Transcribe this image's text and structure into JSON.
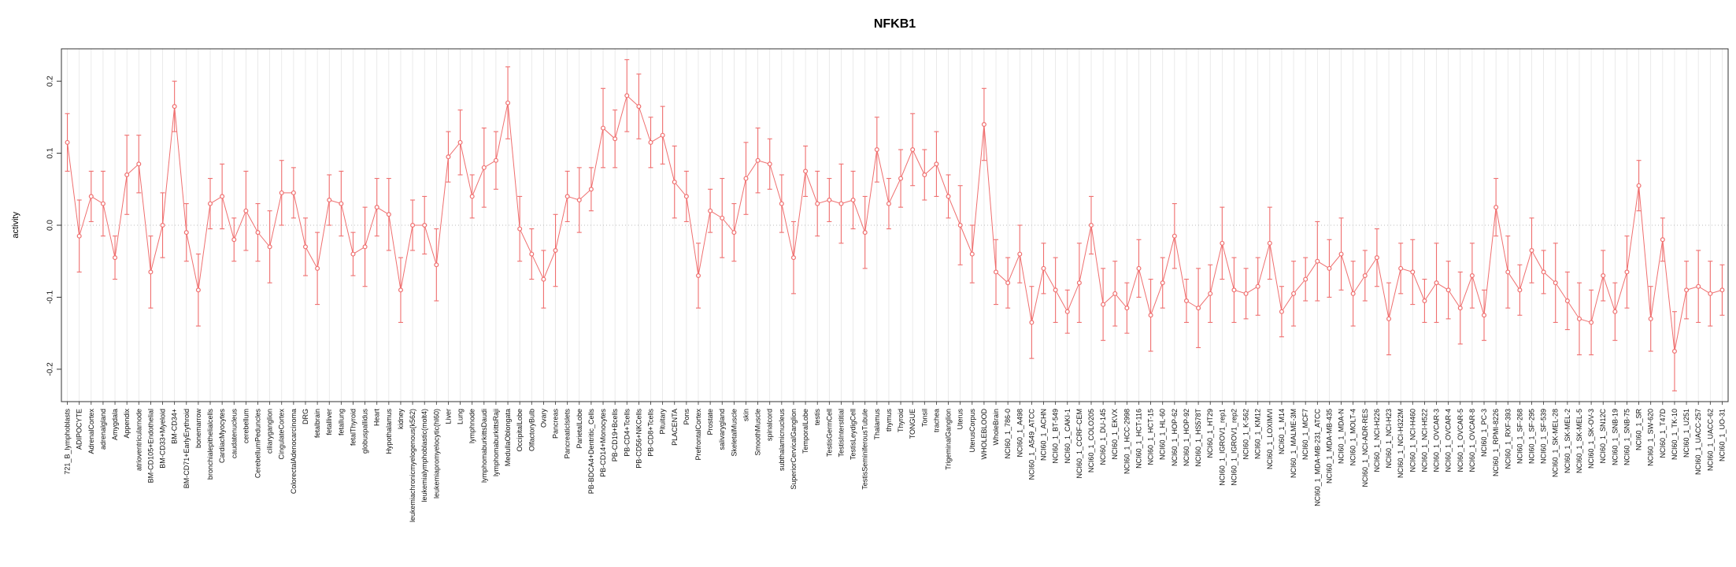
{
  "page": {
    "background": "#ffffff"
  },
  "colors": {
    "series": "#ef6f6f",
    "grid": "#e2e2e2",
    "axis": "#333333",
    "zero_line": "#bbbbbb",
    "label_text": "#111111"
  },
  "chart_data": {
    "type": "line",
    "title": "NFKB1",
    "xlabel": "",
    "ylabel": "activity",
    "ylim": [
      -0.245,
      0.245
    ],
    "yticks": [
      -0.2,
      -0.1,
      0.0,
      0.1,
      0.2
    ],
    "grid": {
      "vertical_per_category": true,
      "zero_line_dotted": true
    },
    "legend": "none",
    "point_style": "open-circle",
    "error_bars": true,
    "categories": [
      "721_B_lymphoblasts",
      "ADIPOCYTE",
      "AdrenalCortex",
      "adrenalgland",
      "Amygdala",
      "Appendix",
      "atrioventricularnode",
      "BM-CD105+Endothelial",
      "BM-CD33+Myeloid",
      "BM-CD34+",
      "BM-CD71+EarlyErythroid",
      "bonemarrow",
      "bronchialepithelialcells",
      "CardiacMyocytes",
      "caudatenucleus",
      "cerebellum",
      "CerebellumPeduncles",
      "ciliaryganglion",
      "CingulateCortex",
      "ColorectalAdenocarcinoma",
      "DRG",
      "fetalbrain",
      "fetalliver",
      "fetallung",
      "fetalThyroid",
      "globuspallidus",
      "Heart",
      "Hypothalamus",
      "kidney",
      "leukemiachronicmyelogenous(k562)",
      "leukemialymphoblastic(molt4)",
      "leukemiapromyelocytic(hl60)",
      "Liver",
      "Lung",
      "lymphnode",
      "lymphomaburkittsDaudi",
      "lymphomaburkittsRaji",
      "MedullaOblongata",
      "OccipitalLobe",
      "OlfactoryBulb",
      "Ovary",
      "Pancreas",
      "PancreaticIslets",
      "ParietalLobe",
      "PB-BDCA4+Dentritic_Cells",
      "PB-CD14+Monocytes",
      "PB-CD19+Bcells",
      "PB-CD4+Tcells",
      "PB-CD56+NKCells",
      "PB-CD8+Tcells",
      "Pituitary",
      "PLACENTA",
      "Pons",
      "PrefrontalCortex",
      "Prostate",
      "salivarygland",
      "SkeletalMuscle",
      "skin",
      "SmoothMuscle",
      "spinalcord",
      "subthalamicnucleus",
      "SuperiorCervicalGanglion",
      "TemporalLobe",
      "testis",
      "TestisGermCell",
      "TestisInterstitial",
      "TestisLeydigCell",
      "TestisSeminiferousTubule",
      "Thalamus",
      "thymus",
      "Thyroid",
      "TONGUE",
      "Tonsil",
      "trachea",
      "TrigeminalGanglion",
      "Uterus",
      "UterusCorpus",
      "WHOLEBLOOD",
      "WholeBrain",
      "NCI60_1_786-0",
      "NCI60_1_A498",
      "NCI60_1_A549_ATCC",
      "NCI60_1_ACHN",
      "NCI60_1_BT-549",
      "NCI60_1_CAKI-1",
      "NCI60_1_CCRF-CEM",
      "NCI60_1_COLO205",
      "NCI60_1_DU-145",
      "NCI60_1_EKVX",
      "NCI60_1_HCC-2998",
      "NCI60_1_HCT-116",
      "NCI60_1_HCT-15",
      "NCI60_1_HL-60",
      "NCI60_1_HOP-62",
      "NCI60_1_HOP-92",
      "NCI60_1_HS578T",
      "NCI60_1_HT29",
      "NCI60_1_IGROV1_rep1",
      "NCI60_1_IGROV1_rep2",
      "NCI60_1_K-562",
      "NCI60_1_KM12",
      "NCI60_1_LOXIMVI",
      "NCI60_1_M14",
      "NCI60_1_MALME-3M",
      "NCI60_1_MCF7",
      "NCI60_1_MDA-MB-231_ATCC",
      "NCI60_1_MDA-MB-435",
      "NCI60_1_MDA-N",
      "NCI60_1_MOLT-4",
      "NCI60_1_NCI-ADR-RES",
      "NCI60_1_NCI-H226",
      "NCI60_1_NCI-H23",
      "NCI60_1_NCI-H322M",
      "NCI60_1_NCI-H460",
      "NCI60_1_NCI-H522",
      "NCI60_1_OVCAR-3",
      "NCI60_1_OVCAR-4",
      "NCI60_1_OVCAR-5",
      "NCI60_1_OVCAR-8",
      "NCI60_1_PC-3",
      "NCI60_1_RPMI-8226",
      "NCI60_1_RXF-393",
      "NCI60_1_SF-268",
      "NCI60_1_SF-295",
      "NCI60_1_SF-539",
      "NCI60_1_SK-MEL-28",
      "NCI60_1_SK-MEL-2",
      "NCI60_1_SK-MEL-5",
      "NCI60_1_SK-OV-3",
      "NCI60_1_SN12C",
      "NCI60_1_SNB-19",
      "NCI60_1_SNB-75",
      "NCI60_1_SR",
      "NCI60_1_SW-620",
      "NCI60_1_T47D",
      "NCI60_1_TK-10",
      "NCI60_1_U251",
      "NCI60_1_UACC-257",
      "NCI60_1_UACC-62",
      "NCI60_1_UO-31"
    ],
    "values": [
      0.115,
      -0.015,
      0.04,
      0.03,
      -0.045,
      0.07,
      0.085,
      -0.065,
      0.0,
      0.165,
      -0.01,
      -0.09,
      0.03,
      0.04,
      -0.02,
      0.02,
      -0.01,
      -0.03,
      0.045,
      0.045,
      -0.03,
      -0.06,
      0.035,
      0.03,
      -0.04,
      -0.03,
      0.025,
      0.015,
      -0.09,
      0.0,
      0.0,
      -0.055,
      0.095,
      0.115,
      0.04,
      0.08,
      0.09,
      0.17,
      -0.005,
      -0.04,
      -0.075,
      -0.035,
      0.04,
      0.035,
      0.05,
      0.135,
      0.12,
      0.18,
      0.165,
      0.115,
      0.125,
      0.06,
      0.04,
      -0.07,
      0.02,
      0.01,
      -0.01,
      0.065,
      0.09,
      0.085,
      0.03,
      -0.045,
      0.075,
      0.03,
      0.035,
      0.03,
      0.035,
      -0.01,
      0.105,
      0.03,
      0.065,
      0.105,
      0.07,
      0.085,
      0.04,
      0.0,
      -0.04,
      0.14,
      -0.065,
      -0.08,
      -0.04,
      -0.135,
      -0.06,
      -0.09,
      -0.12,
      -0.08,
      0.0,
      -0.11,
      -0.095,
      -0.115,
      -0.06,
      -0.125,
      -0.08,
      -0.015,
      -0.105,
      -0.115,
      -0.095,
      -0.025,
      -0.09,
      -0.095,
      -0.085,
      -0.025,
      -0.12,
      -0.095,
      -0.075,
      -0.05,
      -0.06,
      -0.04,
      -0.095,
      -0.07,
      -0.045,
      -0.13,
      -0.06,
      -0.065,
      -0.105,
      -0.08,
      -0.09,
      -0.115,
      -0.07,
      -0.125,
      0.025,
      -0.065,
      -0.09,
      -0.035,
      -0.065,
      -0.08,
      -0.105,
      -0.13,
      -0.135,
      -0.07,
      -0.12,
      -0.065,
      0.055,
      -0.13,
      -0.02,
      -0.175,
      -0.09,
      -0.085,
      -0.095,
      -0.09
    ],
    "errors": [
      0.04,
      0.05,
      0.035,
      0.045,
      0.03,
      0.055,
      0.04,
      0.05,
      0.045,
      0.035,
      0.04,
      0.05,
      0.035,
      0.045,
      0.03,
      0.055,
      0.04,
      0.05,
      0.045,
      0.035,
      0.04,
      0.05,
      0.035,
      0.045,
      0.03,
      0.055,
      0.04,
      0.05,
      0.045,
      0.035,
      0.04,
      0.05,
      0.035,
      0.045,
      0.03,
      0.055,
      0.04,
      0.05,
      0.045,
      0.035,
      0.04,
      0.05,
      0.035,
      0.045,
      0.03,
      0.055,
      0.04,
      0.05,
      0.045,
      0.035,
      0.04,
      0.05,
      0.035,
      0.045,
      0.03,
      0.055,
      0.04,
      0.05,
      0.045,
      0.035,
      0.04,
      0.05,
      0.035,
      0.045,
      0.03,
      0.055,
      0.04,
      0.05,
      0.045,
      0.035,
      0.04,
      0.05,
      0.035,
      0.045,
      0.03,
      0.055,
      0.04,
      0.05,
      0.045,
      0.035,
      0.04,
      0.05,
      0.035,
      0.045,
      0.03,
      0.055,
      0.04,
      0.05,
      0.045,
      0.035,
      0.04,
      0.05,
      0.035,
      0.045,
      0.03,
      0.055,
      0.04,
      0.05,
      0.045,
      0.035,
      0.04,
      0.05,
      0.035,
      0.045,
      0.03,
      0.055,
      0.04,
      0.05,
      0.045,
      0.035,
      0.04,
      0.05,
      0.035,
      0.045,
      0.03,
      0.055,
      0.04,
      0.05,
      0.045,
      0.035,
      0.04,
      0.05,
      0.035,
      0.045,
      0.03,
      0.055,
      0.04,
      0.05,
      0.045,
      0.035,
      0.04,
      0.05,
      0.035,
      0.045,
      0.03,
      0.055,
      0.04,
      0.05,
      0.045,
      0.035
    ]
  }
}
